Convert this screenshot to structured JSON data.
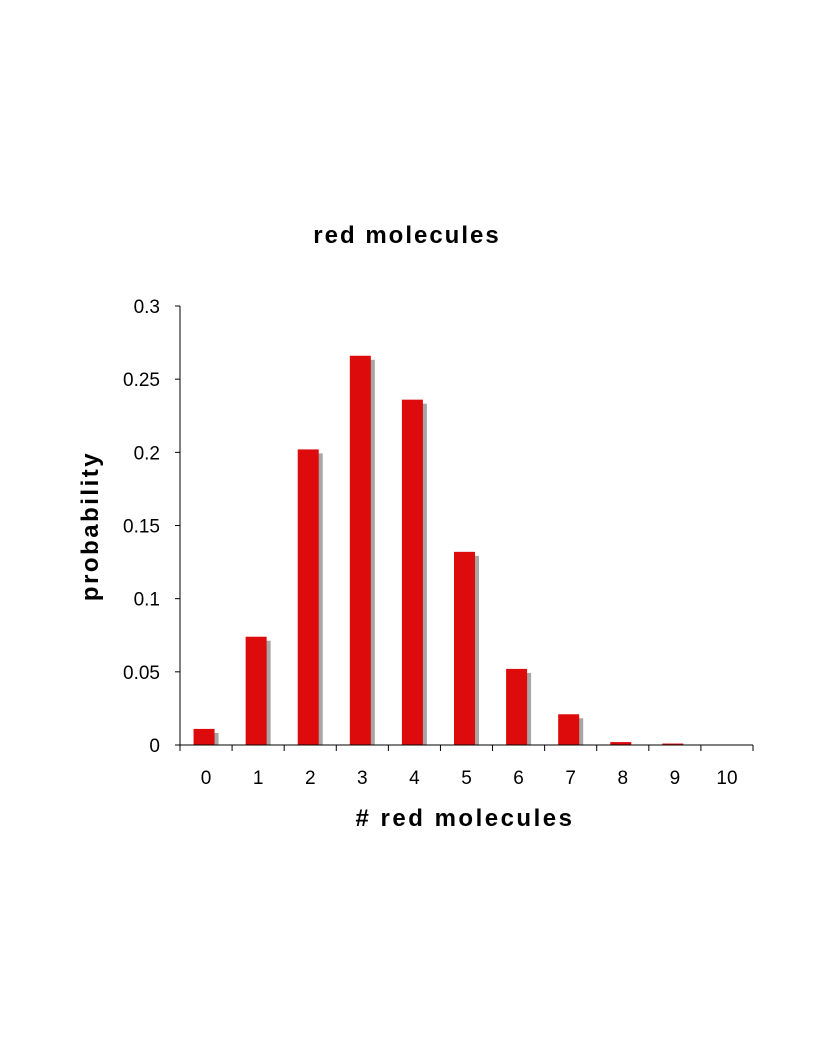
{
  "chart_data": {
    "type": "bar",
    "title": "red molecules",
    "xlabel": "# red molecules",
    "ylabel": "probability",
    "categories": [
      "0",
      "1",
      "2",
      "3",
      "4",
      "5",
      "6",
      "7",
      "8",
      "9",
      "10"
    ],
    "values": [
      0.011,
      0.074,
      0.202,
      0.266,
      0.236,
      0.132,
      0.052,
      0.021,
      0.002,
      0.001,
      0.0
    ],
    "ylim": [
      0,
      0.3
    ],
    "yticks": [
      "0",
      "0.05",
      "0.1",
      "0.15",
      "0.2",
      "0.25",
      "0.3"
    ],
    "grid": false,
    "legend": "none",
    "colors": {
      "bar": "#dd0b0b",
      "shadow": "#a6a6a6",
      "axis": "#000000"
    }
  }
}
